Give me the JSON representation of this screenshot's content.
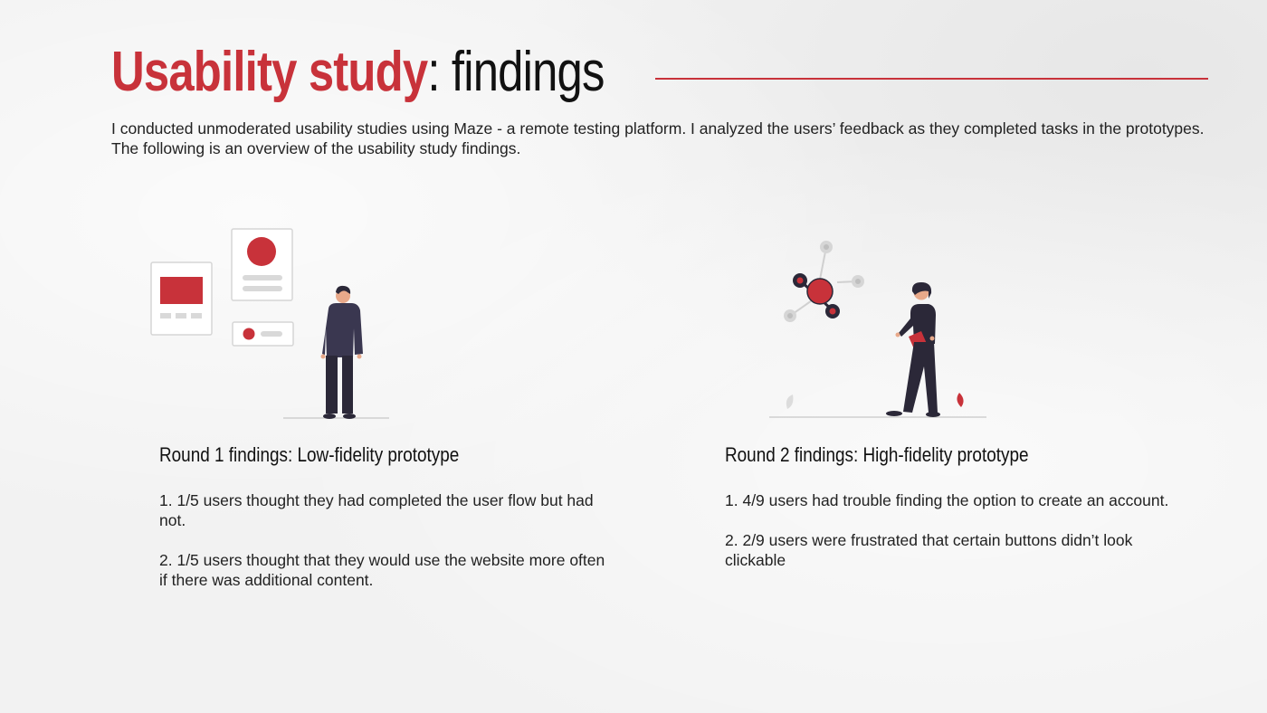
{
  "header": {
    "title_accent": "Usability study",
    "title_rest": ": findings",
    "accent_color": "#c8323a"
  },
  "intro": "I conducted unmoderated usability studies using Maze - a remote testing platform. I analyzed the users’ feedback as they completed tasks in the prototypes. The following is an overview of the usability study findings.",
  "rounds": [
    {
      "title": "Round 1 findings: Low-fidelity prototype",
      "illustration": "person-viewing-wireframes-illustration",
      "findings": [
        "1. 1/5 users thought they had completed the user flow but had not.",
        "2. 1/5 users thought that they would use the website more often if there was additional content."
      ]
    },
    {
      "title": "Round 2 findings: High-fidelity prototype",
      "illustration": "person-with-network-nodes-illustration",
      "findings": [
        "1. 4/9 users had trouble finding the option to create an account.",
        "2. 2/9 users were frustrated that certain buttons didn’t look clickable"
      ]
    }
  ]
}
